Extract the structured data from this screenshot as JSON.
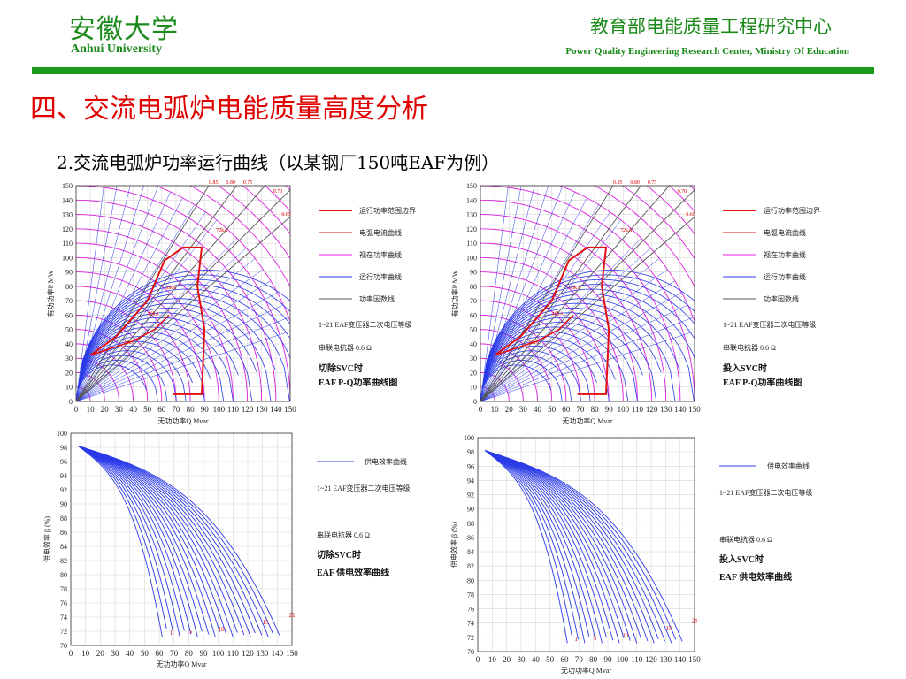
{
  "header": {
    "university_cn": "安徽大学",
    "university_en": "Anhui University",
    "center_cn": "教育部电能质量工程研究中心",
    "center_en": "Power Quality Engineering Research Center, Ministry Of Education"
  },
  "slide": {
    "section_title": "四、交流电弧炉电能质量高度分析",
    "subtitle": "2.交流电弧炉功率运行曲线（以某钢厂150吨EAF为例）"
  },
  "colors": {
    "green": "#1a8a1a",
    "red": "#e00000",
    "blue": "#2a3ae8",
    "magenta": "#e020e0",
    "boundary": "#e01010",
    "factor": "#555555"
  },
  "pq_charts": [
    {
      "ylabel": "有功功率P  MW",
      "xlabel": "无功功率Q   Mvar",
      "xticks": [
        "0",
        "10",
        "20",
        "30",
        "40",
        "50",
        "60",
        "70",
        "80",
        "90",
        "100",
        "110",
        "120",
        "130",
        "140",
        "150"
      ],
      "yticks": [
        "0",
        "10",
        "20",
        "30",
        "40",
        "50",
        "60",
        "70",
        "80",
        "90",
        "100",
        "110",
        "120",
        "130",
        "140",
        "150"
      ],
      "pf_labels": [
        "0.85",
        "0.80",
        "0.75",
        "0.70",
        "0.65"
      ],
      "legend": [
        "运行功率范围边界",
        "电弧电流曲线",
        "视在功率曲线",
        "运行功率曲线",
        "功率因数线"
      ],
      "level_note": "1~21 EAF变压器二次电压等级",
      "reactor": "串联电抗器 0.6 Ω",
      "svc_state": "切除SVC时",
      "caption": "EAF P-Q功率曲线图",
      "current_labels": [
        "20kA",
        "40kA",
        "60kA",
        "72kA"
      ]
    },
    {
      "ylabel": "有功功率P  MW",
      "xlabel": "无功功率Q   Mvar",
      "xticks": [
        "0",
        "10",
        "20",
        "30",
        "40",
        "50",
        "60",
        "70",
        "80",
        "90",
        "100",
        "110",
        "120",
        "130",
        "140",
        "150"
      ],
      "yticks": [
        "0",
        "10",
        "20",
        "30",
        "40",
        "50",
        "60",
        "70",
        "80",
        "90",
        "100",
        "110",
        "120",
        "130",
        "140",
        "150"
      ],
      "pf_labels": [
        "0.85",
        "0.80",
        "0.75",
        "0.70",
        "0.65"
      ],
      "legend": [
        "运行功率范围边界",
        "电弧电流曲线",
        "视在功率曲线",
        "运行功率曲线",
        "功率因数线"
      ],
      "level_note": "1~21 EAF变压器二次电压等级",
      "reactor": "串联电抗器 0.6 Ω",
      "svc_state": "投入SVC时",
      "caption": "EAF P-Q功率曲线图",
      "current_labels": [
        "20kA",
        "40kA",
        "60kA",
        "72kA"
      ]
    }
  ],
  "eff_charts": [
    {
      "ylabel": "供电效率  β  (%)",
      "xlabel": "无功功率Q   Mvar",
      "xticks": [
        "0",
        "10",
        "20",
        "30",
        "40",
        "50",
        "60",
        "70",
        "80",
        "90",
        "100",
        "110",
        "120",
        "130",
        "140",
        "150"
      ],
      "yticks": [
        "70",
        "72",
        "74",
        "76",
        "78",
        "80",
        "82",
        "84",
        "86",
        "88",
        "90",
        "92",
        "94",
        "96",
        "98",
        "100"
      ],
      "legend": [
        "供电效率曲线"
      ],
      "level_note": "1~21 EAF变压器二次电压等级",
      "reactor": "串联电抗器 0.6 Ω",
      "svc_state": "切除SVC时",
      "caption": "EAF 供电效率曲线",
      "curve_labels": [
        "1",
        "5",
        "10",
        "15",
        "21"
      ]
    },
    {
      "ylabel": "供电效率  β  (%)",
      "xlabel": "无功功率Q   Mvar",
      "xticks": [
        "0",
        "10",
        "20",
        "30",
        "40",
        "50",
        "60",
        "70",
        "80",
        "90",
        "100",
        "110",
        "120",
        "130",
        "140",
        "150"
      ],
      "yticks": [
        "70",
        "72",
        "74",
        "76",
        "78",
        "80",
        "82",
        "84",
        "86",
        "88",
        "90",
        "92",
        "94",
        "96",
        "98",
        "100"
      ],
      "legend": [
        "供电效率曲线"
      ],
      "level_note": "1~21 EAF变压器二次电压等级",
      "reactor": "串联电抗器 0.6 Ω",
      "svc_state": "投入SVC时",
      "caption": "EAF 供电效率曲线",
      "curve_labels": [
        "1",
        "5",
        "10",
        "15",
        "21"
      ]
    }
  ]
}
